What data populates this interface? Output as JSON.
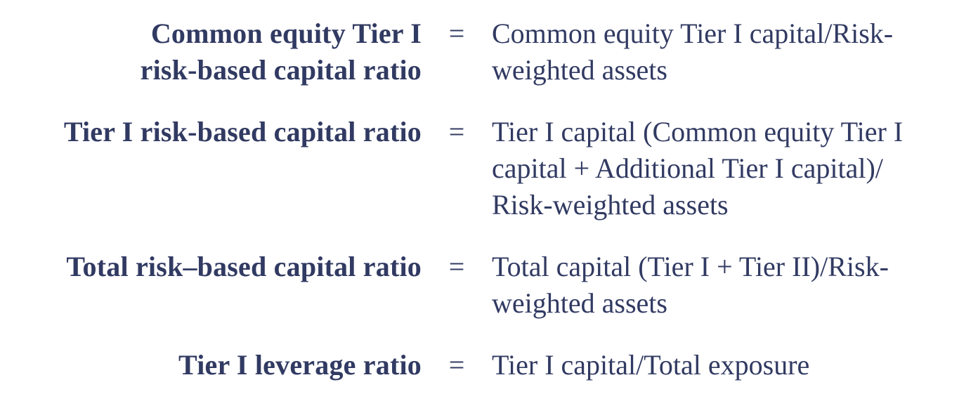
{
  "page": {
    "background_color": "#ffffff",
    "text_color": "#313a62",
    "description": "Definitions of bank regulatory capital ratios"
  },
  "equation_list": {
    "rows": [
      {
        "term_lines": [
          "Common equity Tier I",
          "risk-based capital ratio"
        ],
        "equals": "=",
        "definition_lines": [
          "Common equity Tier I capital/Risk-",
          "weighted assets"
        ]
      },
      {
        "term_lines": [
          "Tier I risk-based capital ratio"
        ],
        "equals": "=",
        "definition_lines": [
          "Tier I capital (Common equity Tier I",
          "capital + Additional Tier I capital)/",
          "Risk-weighted assets"
        ]
      },
      {
        "term_lines": [
          "Total risk–based capital ratio"
        ],
        "equals": "=",
        "definition_lines": [
          "Total capital (Tier I + Tier II)/Risk-",
          "weighted assets"
        ]
      },
      {
        "term_lines": [
          "Tier I leverage ratio"
        ],
        "equals": "=",
        "definition_lines": [
          "Tier I capital/Total exposure"
        ]
      }
    ]
  }
}
